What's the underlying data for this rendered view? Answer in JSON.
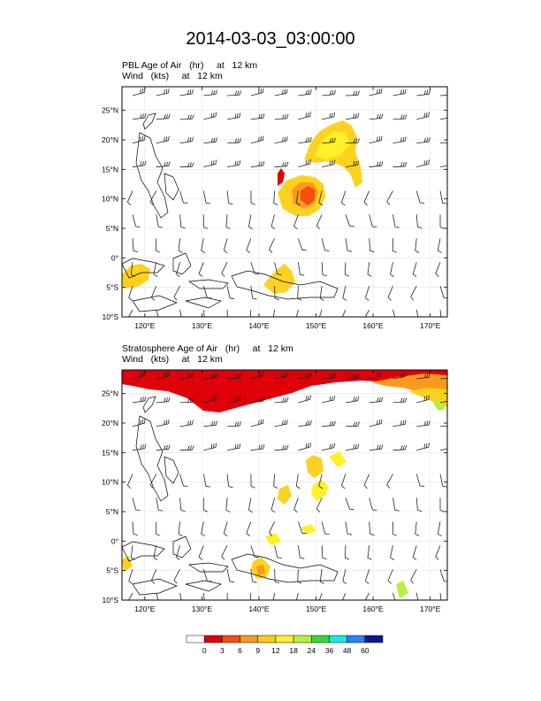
{
  "title": "2014-03-03_03:00:00",
  "panels": [
    {
      "field_label": "PBL Age of Air   (hr)     at   12 km",
      "wind_label": "Wind   (kts)     at   12 km"
    },
    {
      "field_label": "Stratosphere Age of Air   (hr)     at   12 km",
      "wind_label": "Wind   (kts)     at   12 km"
    }
  ],
  "map": {
    "lon_range": [
      116,
      173
    ],
    "lat_range": [
      -10,
      29
    ],
    "lon_ticks": [
      120,
      130,
      140,
      150,
      160,
      170
    ],
    "lon_tick_labels": [
      "120°E",
      "130°E",
      "140°E",
      "150°E",
      "160°E",
      "170°E"
    ],
    "lat_ticks": [
      -10,
      -5,
      0,
      5,
      10,
      15,
      20,
      25
    ],
    "lat_tick_labels": [
      "10°S",
      "5°S",
      "0°",
      "5°N",
      "10°N",
      "15°N",
      "20°N",
      "25°N"
    ],
    "grid": true
  },
  "colorbar": {
    "labels": [
      "0",
      "3",
      "6",
      "9",
      "12",
      "18",
      "24",
      "36",
      "48",
      "60"
    ],
    "colors": [
      "#ffffff",
      "#e0000a",
      "#f44e10",
      "#f99a1a",
      "#fccc18",
      "#fff028",
      "#b8f040",
      "#38d838",
      "#18e8e8",
      "#2b80ff",
      "#0a1a8c"
    ]
  }
}
